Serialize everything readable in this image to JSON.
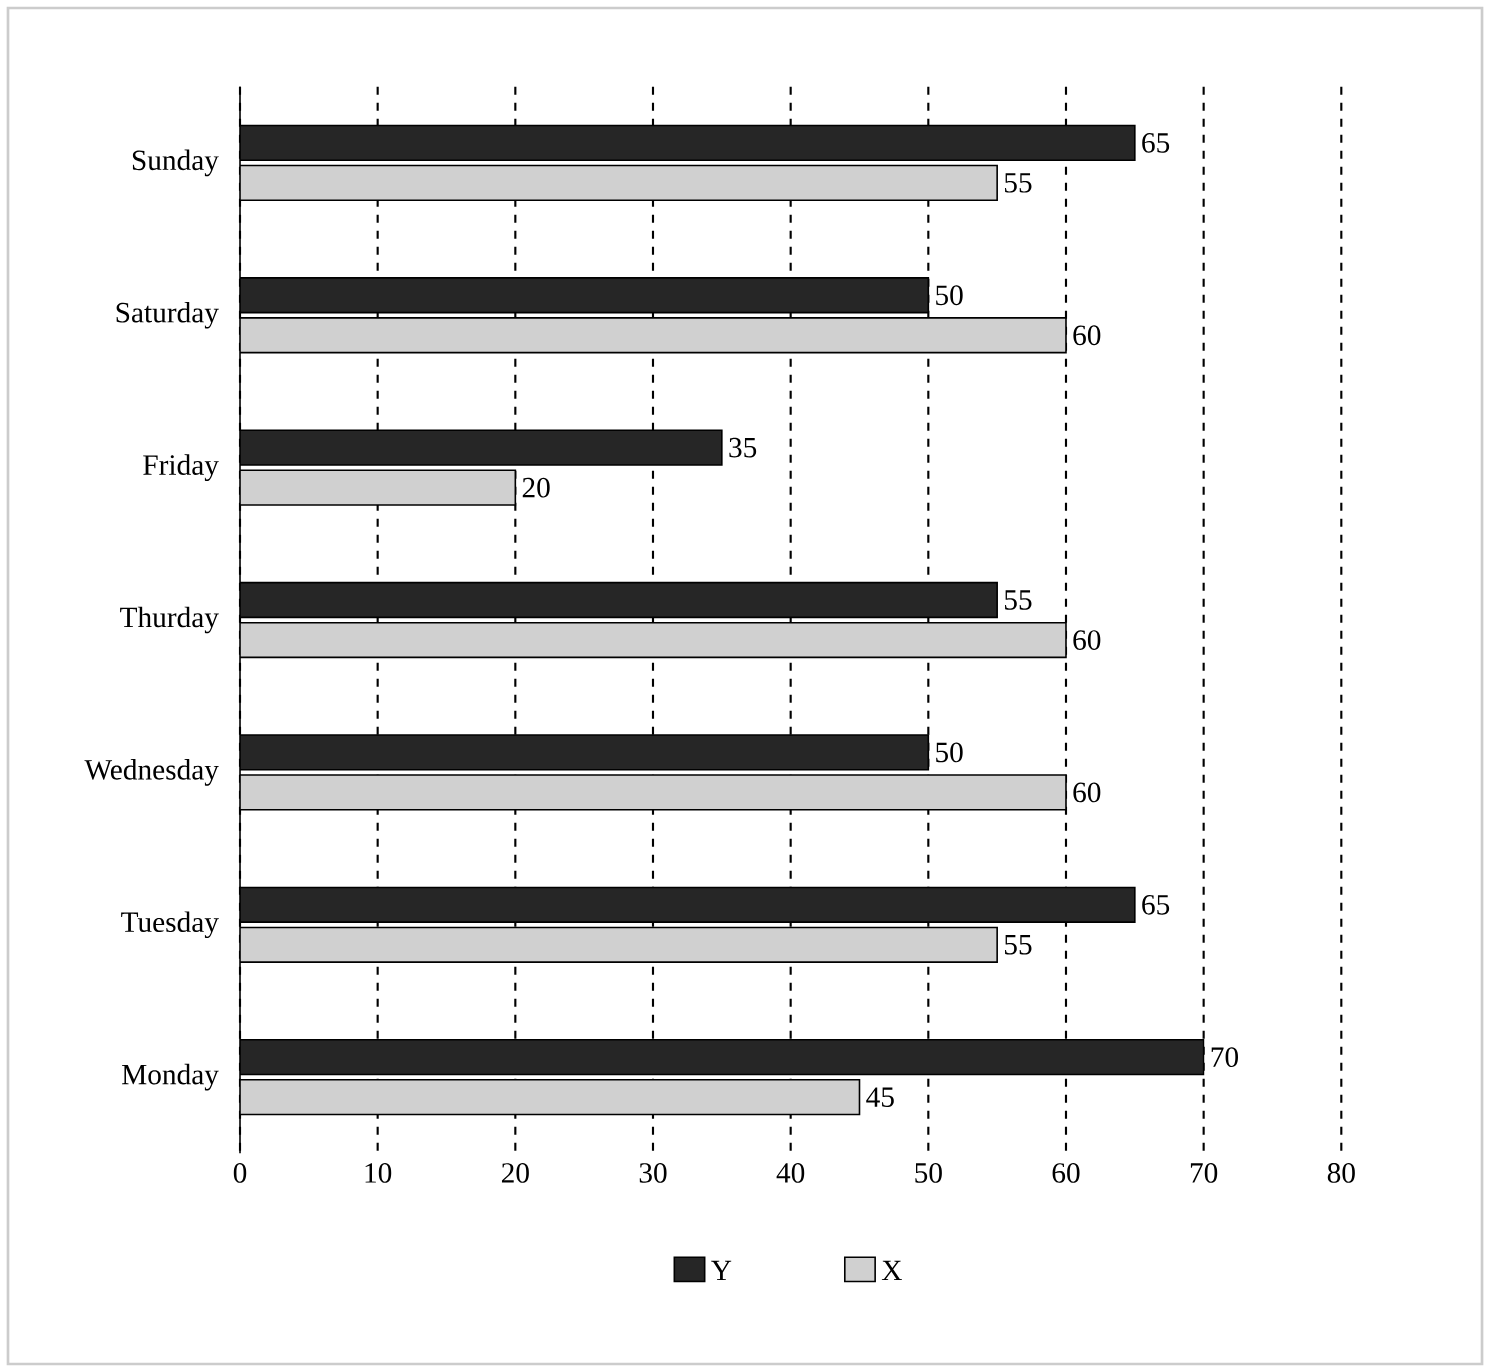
{
  "chart_data": {
    "type": "bar",
    "orientation": "horizontal",
    "categories": [
      "Sunday",
      "Saturday",
      "Friday",
      "Thurday",
      "Wednesday",
      "Tuesday",
      "Monday"
    ],
    "series": [
      {
        "name": "Y",
        "color": "#262626",
        "values": [
          65,
          50,
          35,
          55,
          50,
          65,
          70
        ]
      },
      {
        "name": "X",
        "color": "#d0d0d0",
        "values": [
          55,
          60,
          20,
          60,
          60,
          55,
          45
        ]
      }
    ],
    "xlim": [
      0,
      80
    ],
    "xticks": [
      0,
      10,
      20,
      30,
      40,
      50,
      60,
      70,
      80
    ],
    "grid": "x",
    "data_labels": true,
    "legend": "bottom"
  }
}
